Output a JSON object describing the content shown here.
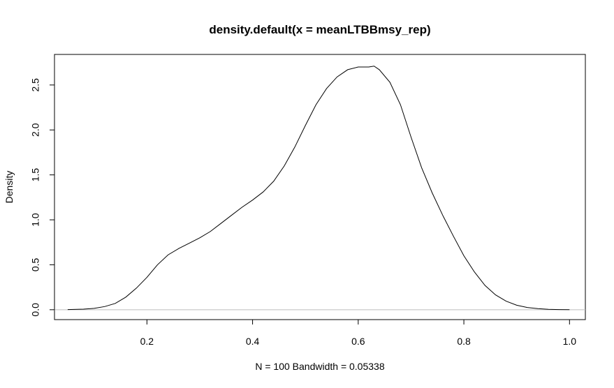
{
  "chart_data": {
    "type": "line",
    "title": "density.default(x = meanLTBBmsy_rep)",
    "xlabel": "N = 100   Bandwidth = 0.05338",
    "ylabel": "Density",
    "xlim": [
      0.025,
      1.03
    ],
    "ylim": [
      -0.11,
      2.84
    ],
    "x_ticks": [
      0.2,
      0.4,
      0.6,
      0.8,
      1.0
    ],
    "x_tick_labels": [
      "0.2",
      "0.4",
      "0.6",
      "0.8",
      "1.0"
    ],
    "y_ticks": [
      0.0,
      0.5,
      1.0,
      1.5,
      2.0,
      2.5
    ],
    "y_tick_labels": [
      "0.0",
      "0.5",
      "1.0",
      "1.5",
      "2.0",
      "2.5"
    ],
    "grid": false,
    "baseline": 0,
    "colors": {
      "line": "#000000",
      "baseline": "#bebebe",
      "frame": "#000000"
    },
    "series": [
      {
        "x": [
          0.05,
          0.08,
          0.1,
          0.12,
          0.14,
          0.16,
          0.18,
          0.2,
          0.22,
          0.24,
          0.26,
          0.28,
          0.3,
          0.32,
          0.34,
          0.36,
          0.38,
          0.4,
          0.42,
          0.44,
          0.46,
          0.48,
          0.5,
          0.52,
          0.54,
          0.56,
          0.58,
          0.6,
          0.62,
          0.63,
          0.64,
          0.66,
          0.68,
          0.7,
          0.72,
          0.74,
          0.76,
          0.78,
          0.8,
          0.82,
          0.84,
          0.86,
          0.88,
          0.9,
          0.92,
          0.94,
          0.96,
          0.98,
          1.0
        ],
        "y": [
          0.002,
          0.006,
          0.015,
          0.035,
          0.07,
          0.14,
          0.24,
          0.36,
          0.5,
          0.61,
          0.68,
          0.74,
          0.8,
          0.87,
          0.96,
          1.05,
          1.14,
          1.22,
          1.31,
          1.43,
          1.6,
          1.81,
          2.05,
          2.28,
          2.46,
          2.59,
          2.67,
          2.7,
          2.7,
          2.71,
          2.67,
          2.53,
          2.28,
          1.92,
          1.58,
          1.3,
          1.05,
          0.82,
          0.6,
          0.42,
          0.27,
          0.165,
          0.095,
          0.05,
          0.025,
          0.012,
          0.005,
          0.002,
          0.001
        ]
      }
    ]
  }
}
